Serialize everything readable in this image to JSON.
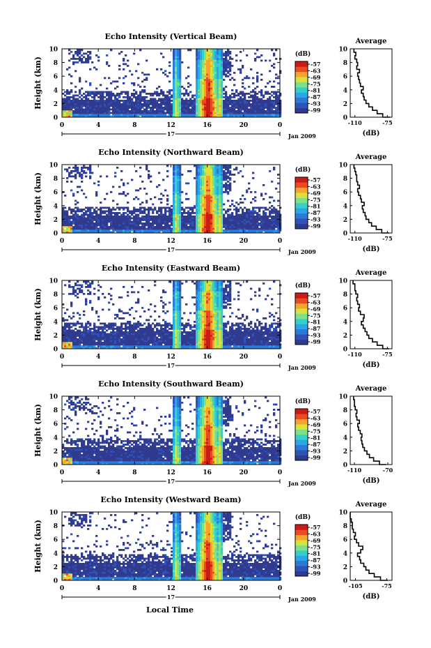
{
  "figure": {
    "footer_xlabel": "Local Time",
    "colors": [
      "#303a8e",
      "#2f52b9",
      "#2b7ad6",
      "#2aa7e6",
      "#36d0c8",
      "#7ee08a",
      "#d9e23b",
      "#f6a52c",
      "#ea4a22",
      "#cc1a14"
    ]
  },
  "chart_data": [
    {
      "type": "heatmap",
      "title": "Echo Intensity (Vertical Beam)",
      "ylabel": "Height (km)",
      "x_ticks": [
        "0",
        "4",
        "8",
        "12",
        "16",
        "20",
        "0"
      ],
      "y_ticks": [
        "0",
        "2",
        "4",
        "6",
        "8",
        "10"
      ],
      "xlim": [
        0,
        24
      ],
      "ylim": [
        0,
        10
      ],
      "date_label": "17",
      "month_label": "Jan 2009",
      "colorbar": {
        "label": "(dB)",
        "ticks": [
          "-57",
          "-63",
          "-69",
          "-75",
          "-81",
          "-87",
          "-93",
          "-99"
        ]
      },
      "boundary_layer_top_km": 4.0,
      "strong_echo_hours": [
        12.5,
        16.0,
        17.2
      ],
      "profile": {
        "title": "Average",
        "xlabel": "(dB)",
        "x_ticks": [
          "-110",
          "-75"
        ],
        "y_ticks": [
          "0",
          "2",
          "4",
          "6",
          "8",
          "10"
        ],
        "xlim": [
          -115,
          -70
        ],
        "height": [
          0,
          0.5,
          1,
          1.5,
          2,
          2.5,
          3,
          3.5,
          4,
          4.5,
          5,
          5.5,
          6,
          6.5,
          7,
          7.5,
          8,
          8.5,
          9,
          9.5,
          10
        ],
        "power": [
          -72,
          -80,
          -86,
          -91,
          -95,
          -98,
          -100,
          -101,
          -103,
          -101,
          -104,
          -105,
          -106,
          -107,
          -105,
          -108,
          -107,
          -108,
          -110,
          -109,
          -111
        ]
      }
    },
    {
      "type": "heatmap",
      "title": "Echo Intensity (Northward Beam)",
      "ylabel": "Height (km)",
      "x_ticks": [
        "0",
        "4",
        "8",
        "12",
        "16",
        "20",
        "0"
      ],
      "y_ticks": [
        "0",
        "2",
        "4",
        "6",
        "8",
        "10"
      ],
      "xlim": [
        0,
        24
      ],
      "ylim": [
        0,
        10
      ],
      "date_label": "17",
      "month_label": "Jan 2009",
      "colorbar": {
        "label": "(dB)",
        "ticks": [
          "-57",
          "-63",
          "-69",
          "-75",
          "-81",
          "-87",
          "-93",
          "-99"
        ]
      },
      "boundary_layer_top_km": 4.0,
      "strong_echo_hours": [
        12.5,
        16.0,
        17.2
      ],
      "profile": {
        "title": "Average",
        "xlabel": "(dB)",
        "x_ticks": [
          "-110",
          "-75"
        ],
        "y_ticks": [
          "0",
          "2",
          "4",
          "6",
          "8",
          "10"
        ],
        "xlim": [
          -115,
          -70
        ],
        "height": [
          0,
          0.5,
          1,
          1.5,
          2,
          2.5,
          3,
          3.5,
          4,
          4.5,
          5,
          5.5,
          6,
          6.5,
          7,
          7.5,
          8,
          8.5,
          9,
          9.5,
          10
        ],
        "power": [
          -73,
          -81,
          -87,
          -92,
          -95,
          -98,
          -99,
          -101,
          -102,
          -100,
          -103,
          -104,
          -106,
          -107,
          -105,
          -107,
          -108,
          -108,
          -109,
          -110,
          -111
        ]
      }
    },
    {
      "type": "heatmap",
      "title": "Echo Intensity (Eastward Beam)",
      "ylabel": "Height (km)",
      "x_ticks": [
        "0",
        "4",
        "8",
        "12",
        "16",
        "20",
        "0"
      ],
      "y_ticks": [
        "0",
        "2",
        "4",
        "6",
        "8",
        "10"
      ],
      "xlim": [
        0,
        24
      ],
      "ylim": [
        0,
        10
      ],
      "date_label": "17",
      "month_label": "Jan 2009",
      "colorbar": {
        "label": "(dB)",
        "ticks": [
          "-57",
          "-63",
          "-69",
          "-75",
          "-81",
          "-87",
          "-93",
          "-99"
        ]
      },
      "boundary_layer_top_km": 4.0,
      "strong_echo_hours": [
        12.5,
        16.0,
        17.2
      ],
      "profile": {
        "title": "Average",
        "xlabel": "(dB)",
        "x_ticks": [
          "-110",
          "-75"
        ],
        "y_ticks": [
          "0",
          "2",
          "4",
          "6",
          "8",
          "10"
        ],
        "xlim": [
          -115,
          -70
        ],
        "height": [
          0,
          0.5,
          1,
          1.5,
          2,
          2.5,
          3,
          3.5,
          4,
          4.5,
          5,
          5.5,
          6,
          6.5,
          7,
          7.5,
          8,
          8.5,
          9,
          9.5,
          10
        ],
        "power": [
          -73,
          -80,
          -86,
          -91,
          -95,
          -97,
          -99,
          -101,
          -103,
          -101,
          -100,
          -104,
          -106,
          -105,
          -107,
          -108,
          -107,
          -109,
          -110,
          -110,
          -112
        ]
      }
    },
    {
      "type": "heatmap",
      "title": "Echo Intensity (Southward Beam)",
      "ylabel": "Height (km)",
      "x_ticks": [
        "0",
        "4",
        "8",
        "12",
        "16",
        "20",
        "0"
      ],
      "y_ticks": [
        "0",
        "2",
        "4",
        "6",
        "8",
        "10"
      ],
      "xlim": [
        0,
        24
      ],
      "ylim": [
        0,
        10
      ],
      "date_label": "17",
      "month_label": "Jan 2009",
      "colorbar": {
        "label": "(dB)",
        "ticks": [
          "-57",
          "-63",
          "-69",
          "-75",
          "-81",
          "-87",
          "-93",
          "-99"
        ]
      },
      "boundary_layer_top_km": 4.0,
      "strong_echo_hours": [
        12.5,
        16.0,
        17.2
      ],
      "profile": {
        "title": "Average",
        "xlabel": "(dB)",
        "x_ticks": [
          "-110",
          "-70"
        ],
        "y_ticks": [
          "0",
          "2",
          "4",
          "6",
          "8",
          "10"
        ],
        "xlim": [
          -115,
          -65
        ],
        "height": [
          0,
          0.5,
          1,
          1.5,
          2,
          2.5,
          3,
          3.5,
          4,
          4.5,
          5,
          5.5,
          6,
          6.5,
          7,
          7.5,
          8,
          8.5,
          9,
          9.5,
          10
        ],
        "power": [
          -72,
          -80,
          -87,
          -92,
          -95,
          -98,
          -100,
          -101,
          -102,
          -101,
          -103,
          -105,
          -106,
          -104,
          -107,
          -108,
          -107,
          -109,
          -110,
          -110,
          -111
        ]
      }
    },
    {
      "type": "heatmap",
      "title": "Echo Intensity (Westward Beam)",
      "ylabel": "Height (km)",
      "x_ticks": [
        "0",
        "4",
        "8",
        "12",
        "16",
        "20",
        "0"
      ],
      "y_ticks": [
        "0",
        "2",
        "4",
        "6",
        "8",
        "10"
      ],
      "xlim": [
        0,
        24
      ],
      "ylim": [
        0,
        10
      ],
      "date_label": "17",
      "month_label": "Jan 2009",
      "colorbar": {
        "label": "(dB)",
        "ticks": [
          "-57",
          "-63",
          "-69",
          "-75",
          "-81",
          "-87",
          "-93",
          "-99"
        ]
      },
      "boundary_layer_top_km": 4.0,
      "strong_echo_hours": [
        12.5,
        16.0,
        17.2
      ],
      "profile": {
        "title": "Average",
        "xlabel": "(dB)",
        "x_ticks": [
          "-105",
          "-75"
        ],
        "y_ticks": [
          "0",
          "2",
          "4",
          "6",
          "8",
          "10"
        ],
        "xlim": [
          -110,
          -70
        ],
        "height": [
          0,
          0.5,
          1,
          1.5,
          2,
          2.5,
          3,
          3.5,
          4,
          4.5,
          5,
          5.5,
          6,
          6.5,
          7,
          7.5,
          8,
          8.5,
          9,
          9.5,
          10
        ],
        "power": [
          -74,
          -81,
          -87,
          -92,
          -95,
          -97,
          -100,
          -101,
          -103,
          -100,
          -98,
          -102,
          -104,
          -106,
          -105,
          -107,
          -108,
          -108,
          -109,
          -110,
          -110
        ]
      }
    }
  ]
}
